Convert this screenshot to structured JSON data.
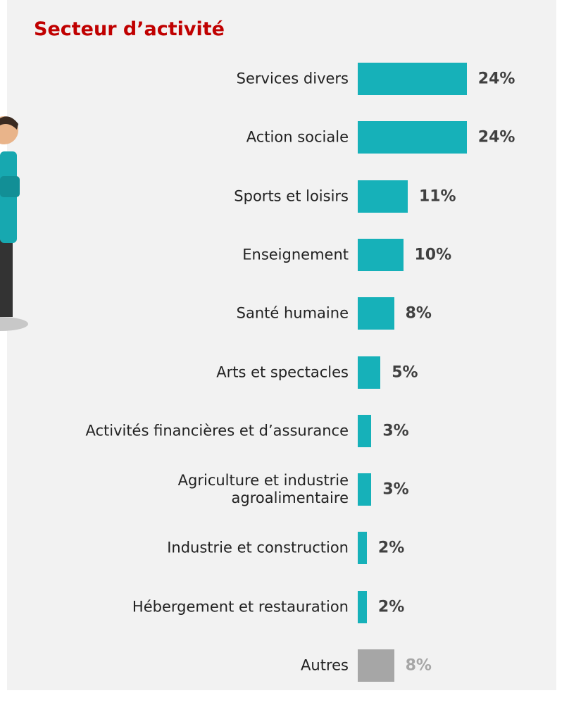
{
  "chart_data": {
    "type": "hbar",
    "title": "Secteur d’activité",
    "categories": [
      "Services divers",
      "Action sociale",
      "Sports et loisirs",
      "Enseignement",
      "Santé humaine",
      "Arts et spectacles",
      "Activités financières et d’assurance",
      "Agriculture et industrie\nagroalimentaire",
      "Industrie et construction",
      "Hébergement et restauration",
      "Autres"
    ],
    "values": [
      24,
      24,
      11,
      10,
      8,
      5,
      3,
      3,
      2,
      2,
      8
    ],
    "value_labels": [
      "24%",
      "24%",
      "11%",
      "10%",
      "8%",
      "5%",
      "3%",
      "3%",
      "2%",
      "2%",
      "8%"
    ],
    "colors": [
      "#16b1b9",
      "#16b1b9",
      "#16b1b9",
      "#16b1b9",
      "#16b1b9",
      "#16b1b9",
      "#16b1b9",
      "#16b1b9",
      "#16b1b9",
      "#16b1b9",
      "#a6a6a6"
    ],
    "label_colors": [
      "#404040",
      "#404040",
      "#404040",
      "#404040",
      "#404040",
      "#404040",
      "#404040",
      "#404040",
      "#404040",
      "#404040",
      "#a6a6a6"
    ]
  }
}
